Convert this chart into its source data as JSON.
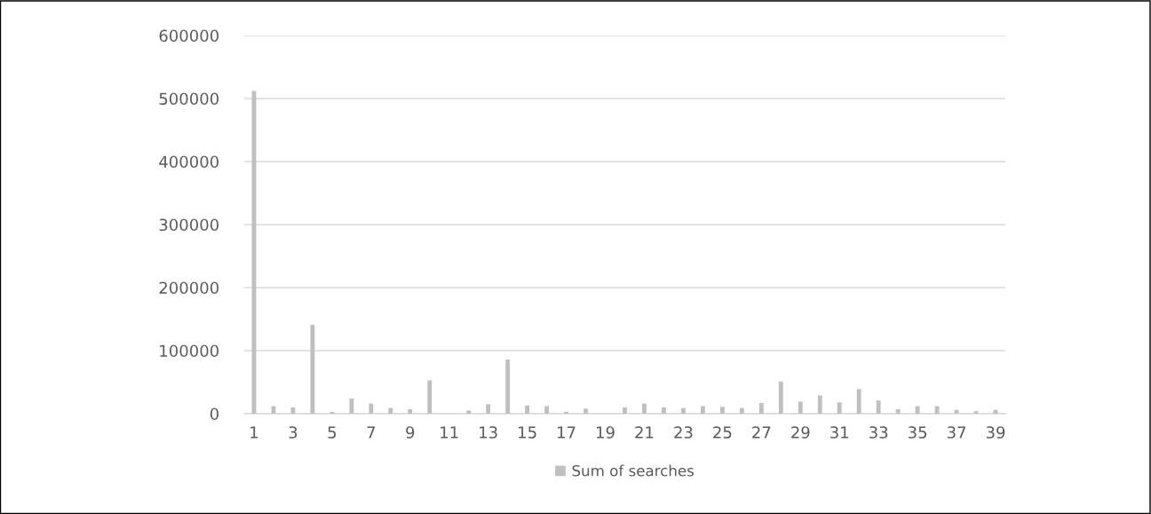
{
  "chart_data": {
    "type": "bar",
    "categories": [
      "1",
      null,
      "3",
      null,
      "5",
      null,
      "7",
      null,
      "9",
      null,
      "11",
      null,
      "13",
      null,
      "15",
      null,
      "17",
      null,
      "19",
      null,
      "21",
      null,
      "23",
      null,
      "25",
      null,
      "27",
      null,
      "29",
      null,
      "31",
      null,
      "33",
      null,
      "35",
      null,
      "37",
      null,
      "39"
    ],
    "series": [
      {
        "name": "Sum of searches",
        "color": "#bfbfbf",
        "values": [
          512000,
          12000,
          10000,
          141000,
          3000,
          24000,
          16000,
          9000,
          7000,
          53000,
          0,
          5000,
          15000,
          86000,
          13000,
          12000,
          3000,
          8000,
          0,
          10000,
          16000,
          10000,
          9000,
          12000,
          11000,
          9000,
          17000,
          51000,
          19000,
          29000,
          18000,
          39000,
          21000,
          7000,
          12000,
          12000,
          6000,
          4000,
          6000
        ]
      }
    ],
    "ylim": [
      0,
      600000
    ],
    "yticks": [
      0,
      100000,
      200000,
      300000,
      400000,
      500000,
      600000
    ],
    "grid": "y",
    "legend": "bottom"
  }
}
